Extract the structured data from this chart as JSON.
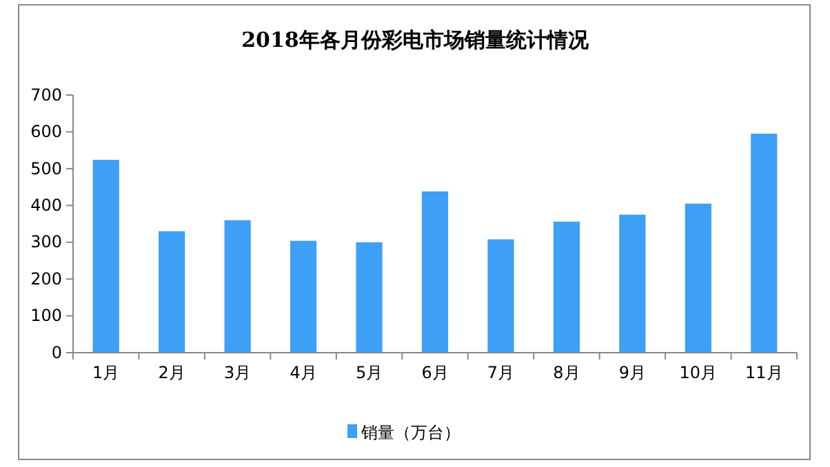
{
  "chart_data": {
    "type": "bar",
    "title": "2018年各月份彩电市场销量统计情况",
    "categories": [
      "1月",
      "2月",
      "3月",
      "4月",
      "5月",
      "6月",
      "7月",
      "8月",
      "9月",
      "10月",
      "11月"
    ],
    "series": [
      {
        "name": "销量（万台）",
        "color": "#3d9ff5",
        "values": [
          524,
          330,
          360,
          304,
          300,
          438,
          308,
          356,
          375,
          405,
          595
        ]
      }
    ],
    "ylim": [
      0,
      700
    ],
    "yticks": [
      0,
      100,
      200,
      300,
      400,
      500,
      600,
      700
    ],
    "grid": false,
    "legend": "bottom"
  }
}
